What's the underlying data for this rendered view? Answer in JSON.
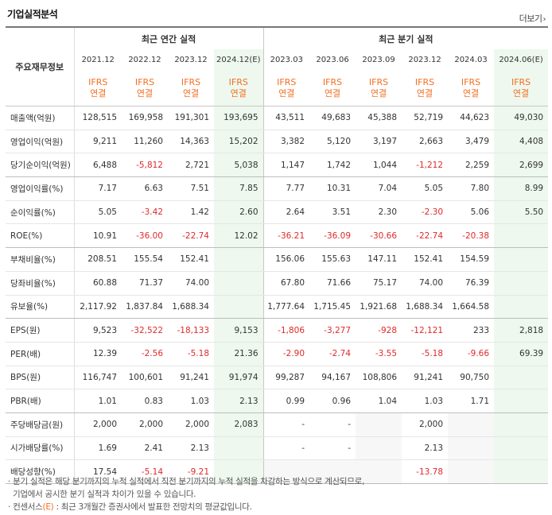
{
  "title": "기업실적분석",
  "more_label": "더보기",
  "header": {
    "row_label": "주요재무정보",
    "annual_group": "최근 연간 실적",
    "quarter_group": "최근 분기 실적",
    "annual_periods": [
      "2021.12",
      "2022.12",
      "2023.12",
      "2024.12(E)"
    ],
    "quarter_periods": [
      "2023.03",
      "2023.06",
      "2023.09",
      "2023.12",
      "2024.03",
      "2024.06(E)"
    ],
    "basis_line1": "IFRS",
    "basis_line2": "연결"
  },
  "rows": [
    {
      "label": "매출액(억원)",
      "values": [
        "128,515",
        "169,958",
        "191,301",
        "193,695",
        "43,511",
        "49,683",
        "45,388",
        "52,719",
        "44,623",
        "49,030"
      ]
    },
    {
      "label": "영업이익(억원)",
      "values": [
        "9,211",
        "11,260",
        "14,363",
        "15,202",
        "3,382",
        "5,120",
        "3,197",
        "2,663",
        "3,479",
        "4,408"
      ]
    },
    {
      "label": "당기순이익(억원)",
      "values": [
        "6,488",
        "-5,812",
        "2,721",
        "5,038",
        "1,147",
        "1,742",
        "1,044",
        "-1,212",
        "2,259",
        "2,699"
      ]
    },
    {
      "label": "영업이익률(%)",
      "values": [
        "7.17",
        "6.63",
        "7.51",
        "7.85",
        "7.77",
        "10.31",
        "7.04",
        "5.05",
        "7.80",
        "8.99"
      ]
    },
    {
      "label": "순이익률(%)",
      "values": [
        "5.05",
        "-3.42",
        "1.42",
        "2.60",
        "2.64",
        "3.51",
        "2.30",
        "-2.30",
        "5.06",
        "5.50"
      ]
    },
    {
      "label": "ROE(%)",
      "values": [
        "10.91",
        "-36.00",
        "-22.74",
        "12.02",
        "-36.21",
        "-36.09",
        "-30.66",
        "-22.74",
        "-20.38",
        ""
      ]
    },
    {
      "label": "부채비율(%)",
      "values": [
        "208.51",
        "155.54",
        "152.41",
        "",
        "156.06",
        "155.63",
        "147.11",
        "152.41",
        "154.59",
        ""
      ]
    },
    {
      "label": "당좌비율(%)",
      "values": [
        "60.88",
        "71.37",
        "74.00",
        "",
        "67.80",
        "71.66",
        "75.17",
        "74.00",
        "76.39",
        ""
      ]
    },
    {
      "label": "유보율(%)",
      "values": [
        "2,117.92",
        "1,837.84",
        "1,688.34",
        "",
        "1,777.64",
        "1,715.45",
        "1,921.68",
        "1,688.34",
        "1,664.58",
        ""
      ]
    },
    {
      "label": "EPS(원)",
      "values": [
        "9,523",
        "-32,522",
        "-18,133",
        "9,153",
        "-1,806",
        "-3,277",
        "-928",
        "-12,121",
        "233",
        "2,818"
      ]
    },
    {
      "label": "PER(배)",
      "values": [
        "12.39",
        "-2.56",
        "-5.18",
        "21.36",
        "-2.90",
        "-2.74",
        "-3.55",
        "-5.18",
        "-9.66",
        "69.39"
      ]
    },
    {
      "label": "BPS(원)",
      "values": [
        "116,747",
        "100,601",
        "91,241",
        "91,974",
        "99,287",
        "94,167",
        "108,806",
        "91,241",
        "90,750",
        ""
      ]
    },
    {
      "label": "PBR(배)",
      "values": [
        "1.01",
        "0.83",
        "1.03",
        "2.13",
        "0.99",
        "0.96",
        "1.04",
        "1.03",
        "1.71",
        ""
      ]
    },
    {
      "label": "주당배당금(원)",
      "values": [
        "2,000",
        "2,000",
        "2,000",
        "2,083",
        "-",
        "-",
        "",
        "2,000",
        "",
        ""
      ]
    },
    {
      "label": "시가배당률(%)",
      "values": [
        "1.69",
        "2.41",
        "2.13",
        "",
        "-",
        "-",
        "",
        "2.13",
        "",
        ""
      ]
    },
    {
      "label": "배당성향(%)",
      "values": [
        "17.54",
        "-5.14",
        "-9.21",
        "",
        "",
        "",
        "",
        "-13.78",
        "",
        ""
      ]
    }
  ],
  "notes": {
    "line1": "분기 실적은 해당 분기까지의 누적 실적에서 직전 분기까지의 누적 실적을 차감하는 방식으로 계산되므로,",
    "line2": "기업에서 공시한 분기 실적과 차이가 있을 수 있습니다.",
    "line3_prefix": "컨센서스",
    "line3_e": "(E)",
    "line3_suffix": ": 최근 3개월간 증권사에서 발표한 전망치의 평균값입니다."
  },
  "colors": {
    "accent": "#f26f21",
    "negative": "#e0292b",
    "estimate_bg": "#eef8ee"
  }
}
